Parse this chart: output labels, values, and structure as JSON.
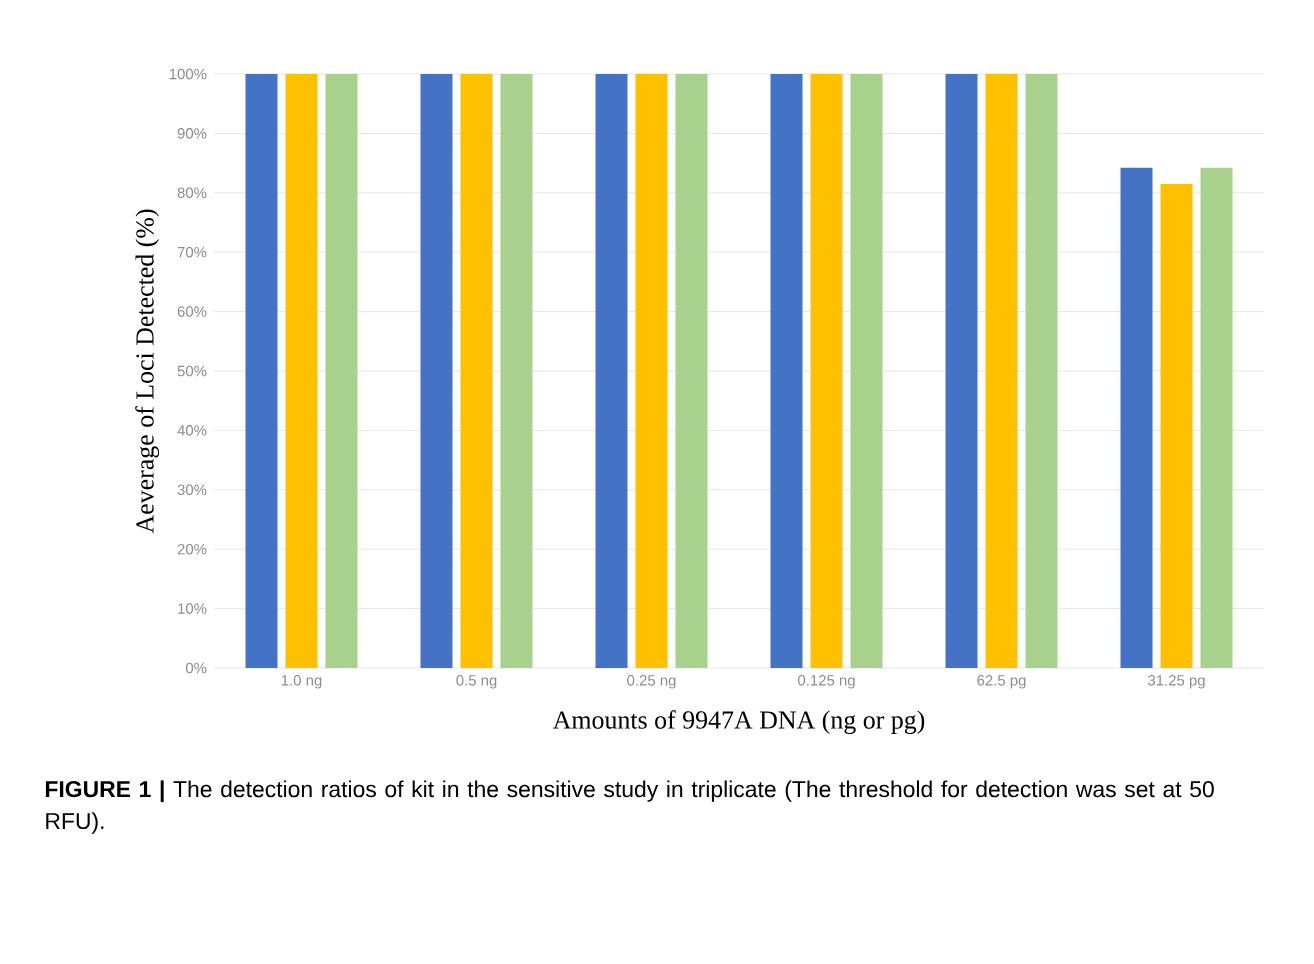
{
  "chart_data": {
    "type": "bar",
    "xlabel": "Amounts of 9947A DNA (ng or pg)",
    "ylabel": "Aeverage of Loci Detected (%)",
    "categories": [
      "1.0 ng",
      "0.5 ng",
      "0.25 ng",
      "0.125 ng",
      "62.5 pg",
      "31.25 pg"
    ],
    "series": [
      {
        "color": "#4472c4",
        "values": [
          100,
          100,
          100,
          100,
          100,
          84.2
        ]
      },
      {
        "color": "#ffc000",
        "values": [
          100,
          100,
          100,
          100,
          100,
          81.5
        ]
      },
      {
        "color": "#a9d18e",
        "values": [
          100,
          100,
          100,
          100,
          100,
          84.2
        ]
      }
    ],
    "ylim": [
      0,
      100
    ],
    "yticks": [
      {
        "value": 0,
        "label": "0%"
      },
      {
        "value": 10,
        "label": "10%"
      },
      {
        "value": 20,
        "label": "20%"
      },
      {
        "value": 30,
        "label": "30%"
      },
      {
        "value": 40,
        "label": "40%"
      },
      {
        "value": 50,
        "label": "50%"
      },
      {
        "value": 60,
        "label": "60%"
      },
      {
        "value": 70,
        "label": "70%"
      },
      {
        "value": 80,
        "label": "80%"
      },
      {
        "value": 90,
        "label": "90%"
      },
      {
        "value": 100,
        "label": "100%"
      }
    ],
    "grid": "y",
    "annotations": [
      "**FIGURE 1 |** The detection ratios of kit in the sensitive study in triplicate (The threshold for detection was set at 50 RFU)."
    ]
  }
}
